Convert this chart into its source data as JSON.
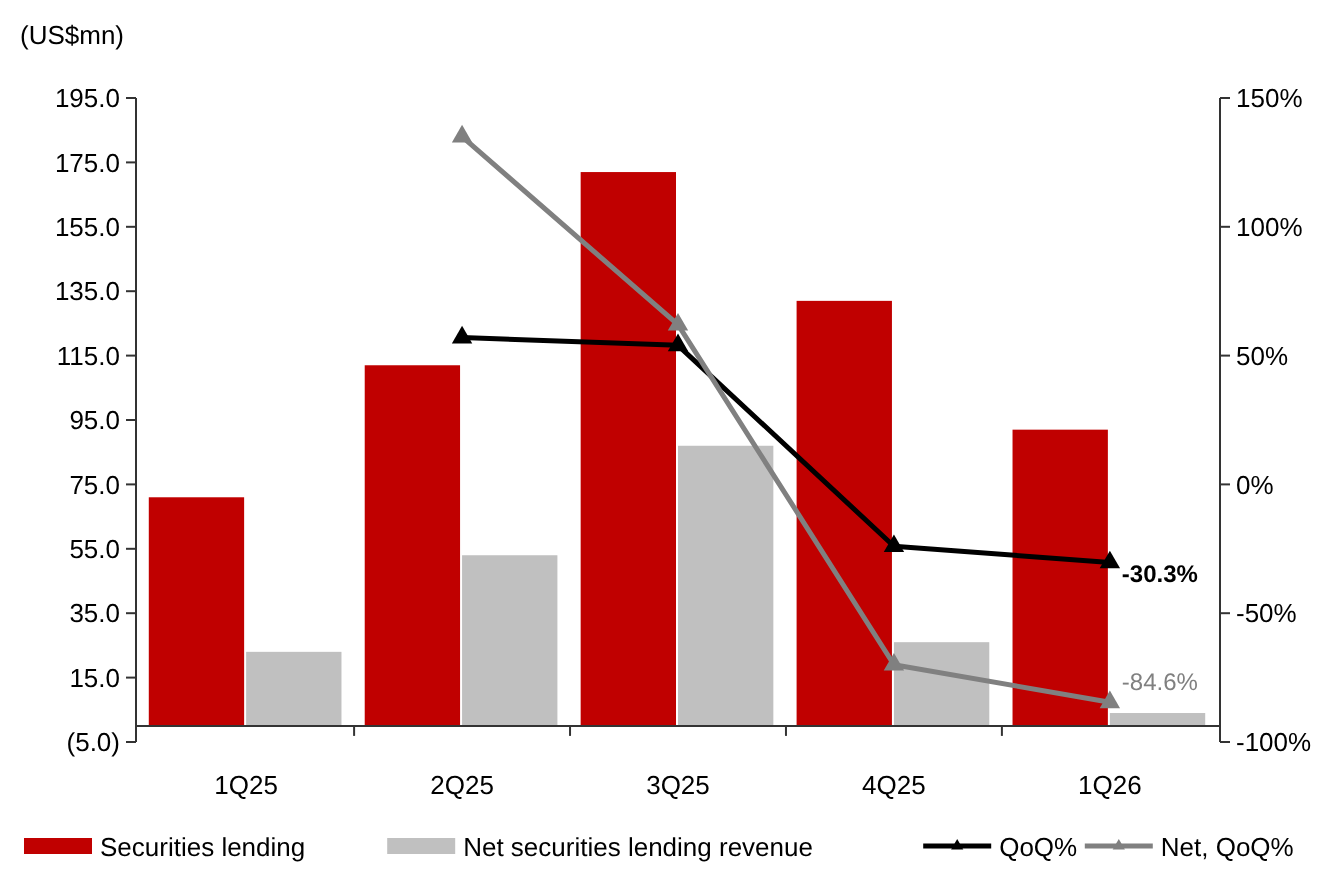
{
  "chart_data": {
    "type": "bar",
    "ylabel": "(US$mn)",
    "categories": [
      "1Q25",
      "2Q25",
      "3Q25",
      "4Q25",
      "1Q26"
    ],
    "series": [
      {
        "name": "Securities lending",
        "color": "#c00000",
        "values": [
          71,
          112,
          172,
          132,
          92
        ]
      },
      {
        "name": "Net securities lending revenue",
        "color": "#c0c0c0",
        "values": [
          23,
          53,
          87,
          26,
          4
        ]
      },
      {
        "name": "QoQ%",
        "type": "line",
        "axis": "y2",
        "color": "#000000",
        "marker": "triangle",
        "values": [
          null,
          57,
          54,
          -24,
          -30.3
        ],
        "value_labels": [
          null,
          null,
          null,
          null,
          "-30.3%"
        ]
      },
      {
        "name": "Net, QoQ%",
        "type": "line",
        "axis": "y2",
        "color": "#808080",
        "marker": "triangle",
        "values": [
          null,
          135,
          62,
          -70,
          -84.6
        ],
        "value_labels": [
          null,
          null,
          null,
          null,
          "-84.6%"
        ]
      }
    ],
    "ylim": [
      -5,
      195
    ],
    "yticks": [
      {
        "value": 195,
        "label": "195.0"
      },
      {
        "value": 175,
        "label": "175.0"
      },
      {
        "value": 155,
        "label": "155.0"
      },
      {
        "value": 135,
        "label": "135.0"
      },
      {
        "value": 115,
        "label": "115.0"
      },
      {
        "value": 95,
        "label": "95.0"
      },
      {
        "value": 75,
        "label": "75.0"
      },
      {
        "value": 55,
        "label": "55.0"
      },
      {
        "value": 35,
        "label": "35.0"
      },
      {
        "value": 15,
        "label": "15.0"
      },
      {
        "value": -5,
        "label": "(5.0)"
      }
    ],
    "y2lim": [
      -100,
      150
    ],
    "y2ticks": [
      {
        "value": 150,
        "label": "150%"
      },
      {
        "value": 100,
        "label": "100%"
      },
      {
        "value": 50,
        "label": "50%"
      },
      {
        "value": 0,
        "label": "0%"
      },
      {
        "value": -50,
        "label": "-50%"
      },
      {
        "value": -100,
        "label": "-100%"
      }
    ],
    "grid": false,
    "legend": "bottom"
  }
}
